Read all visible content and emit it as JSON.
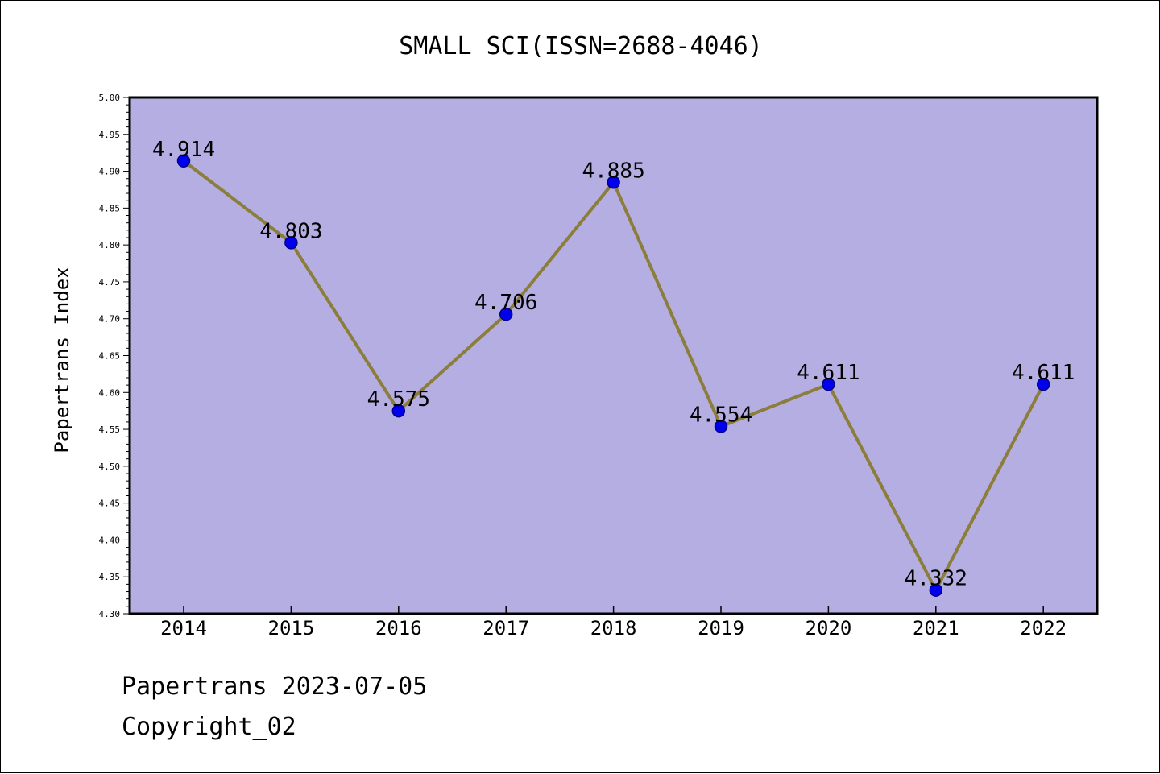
{
  "chart_data": {
    "type": "line",
    "title": "SMALL SCI(ISSN=2688-4046)",
    "xlabel": "",
    "ylabel": "Papertrans Index",
    "categories": [
      "2014",
      "2015",
      "2016",
      "2017",
      "2018",
      "2019",
      "2020",
      "2021",
      "2022"
    ],
    "values": [
      4.914,
      4.803,
      4.575,
      4.706,
      4.885,
      4.554,
      4.611,
      4.332,
      4.611
    ],
    "data_labels": [
      "4.914",
      "4.803",
      "4.575",
      "4.706",
      "4.885",
      "4.554",
      "4.611",
      "4.332",
      "4.611"
    ],
    "ylim": [
      4.3,
      5.0
    ],
    "y_ticks": [
      "4.30",
      "4.35",
      "4.40",
      "4.45",
      "4.50",
      "4.55",
      "4.60",
      "4.65",
      "4.70",
      "4.75",
      "4.80",
      "4.85",
      "4.90",
      "4.95",
      "5.00"
    ],
    "grid": false,
    "legend": "none",
    "colors": {
      "plot_background": "#b5aee2",
      "line": "#8b7d3a",
      "marker": "#0000ee",
      "marker_edge": "#00008b",
      "frame": "#000000"
    }
  },
  "footer": {
    "line1": "Papertrans 2023-07-05",
    "line2": "Copyright_02"
  }
}
